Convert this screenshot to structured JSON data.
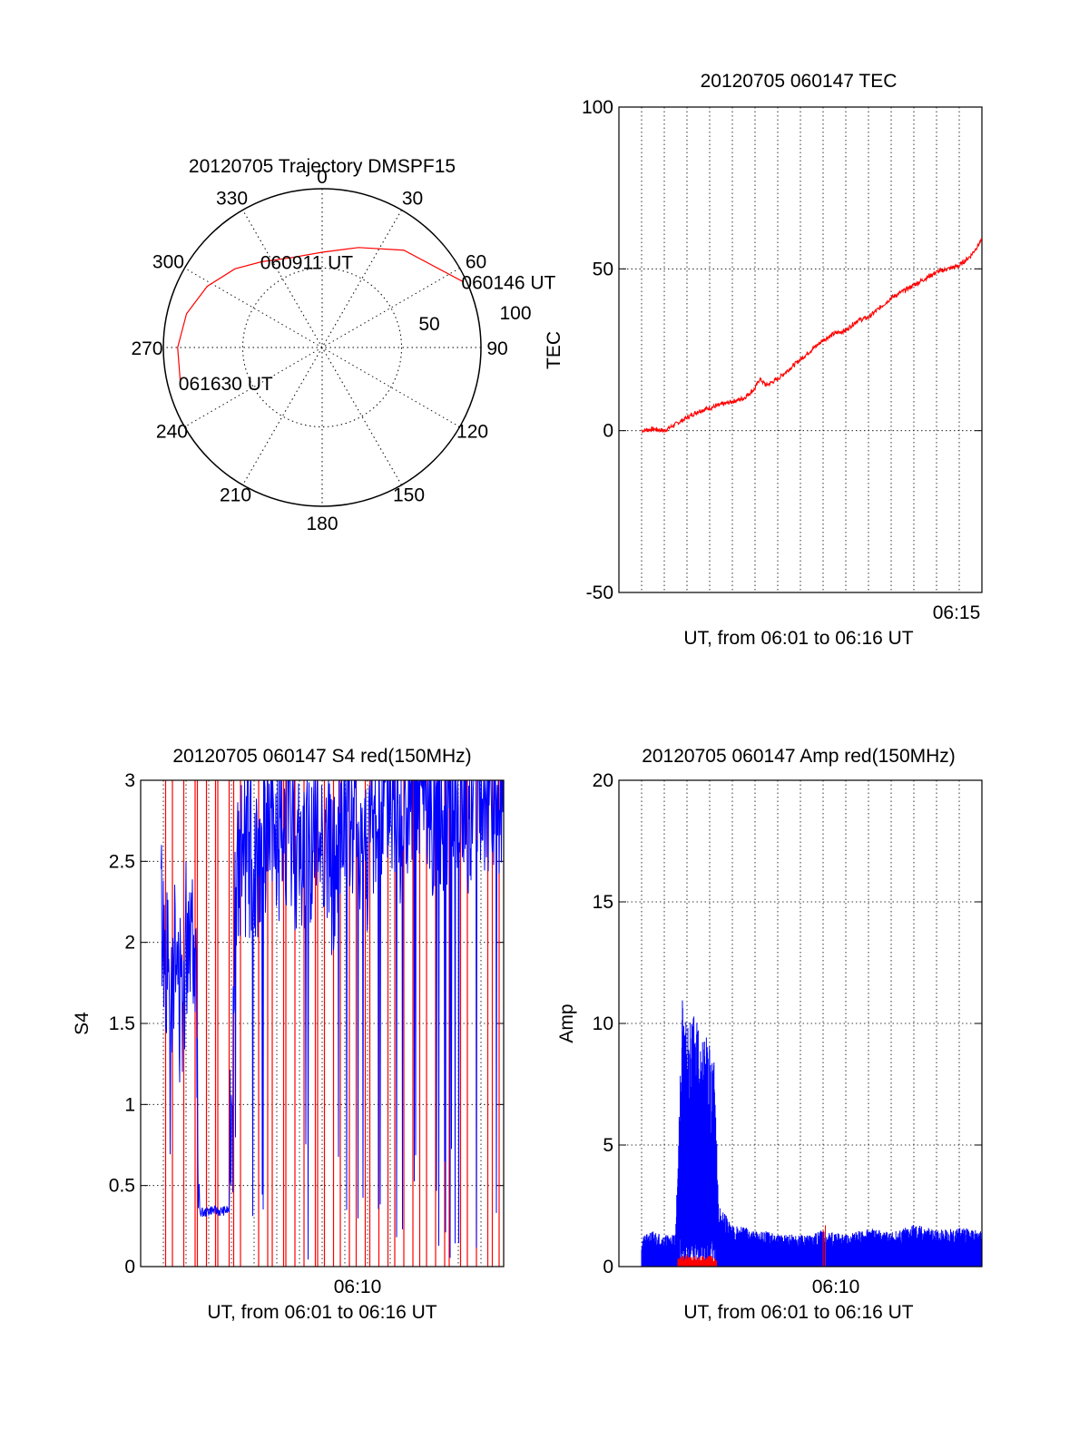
{
  "colors": {
    "red": "#ff0000",
    "blue": "#0000ff",
    "axis": "#000000",
    "grid": "#000000"
  },
  "chart_data": [
    {
      "id": "trajectory",
      "type": "polar",
      "title": "20120705 Trajectory DMSPF15",
      "angle_labels": [
        "0",
        "30",
        "60",
        "90",
        "120",
        "150",
        "180",
        "210",
        "240",
        "270",
        "300",
        "330"
      ],
      "radius_labels": [
        "50",
        "100"
      ],
      "rlim": [
        0,
        100
      ],
      "grid": true,
      "series": [
        {
          "color": "#ff0000",
          "points": [
            {
              "az": 65,
              "r": 98,
              "label": "060146 UT"
            },
            {
              "az": 40,
              "r": 80
            },
            {
              "az": 20,
              "r": 67
            },
            {
              "az": 0,
              "r": 60
            },
            {
              "az": -20,
              "r": 60
            },
            {
              "az": -35,
              "r": 66,
              "label": "060911 UT"
            },
            {
              "az": -48,
              "r": 74
            },
            {
              "az": -62,
              "r": 82
            },
            {
              "az": -76,
              "r": 88
            },
            {
              "az": -90,
              "r": 91
            },
            {
              "az": -104,
              "r": 92,
              "label": "061630 UT"
            }
          ]
        }
      ]
    },
    {
      "id": "tec",
      "type": "line",
      "title": "20120705 060147 TEC",
      "xlabel": "UT, from 06:01 to 06:16 UT",
      "ylabel": "TEC",
      "x_tick_labels": [
        "06:15"
      ],
      "y_ticks": [
        "100",
        "50",
        "0",
        "-50"
      ],
      "ylim": [
        -50,
        100
      ],
      "xlim_minutes": [
        0,
        16
      ],
      "grid": true,
      "series": [
        {
          "color": "#ff0000",
          "x": [
            1.0,
            1.5,
            2.0,
            2.5,
            3.0,
            3.5,
            4.0,
            4.5,
            5.0,
            5.5,
            6.0,
            6.2,
            6.5,
            7.0,
            7.5,
            8.0,
            8.5,
            9.0,
            9.5,
            10.0,
            10.5,
            11.0,
            11.5,
            12.0,
            12.5,
            13.0,
            13.5,
            14.0,
            14.5,
            15.0,
            15.5,
            16.0
          ],
          "y": [
            0,
            0.5,
            0,
            2,
            4,
            6,
            7,
            8,
            9,
            10,
            13,
            16,
            14,
            16,
            19,
            22,
            25,
            28,
            30,
            31,
            34,
            35,
            38,
            41,
            43,
            45,
            47,
            49,
            50,
            51,
            54,
            59
          ]
        }
      ]
    },
    {
      "id": "s4",
      "type": "line",
      "title": "20120705 060147 S4 red(150MHz)",
      "xlabel": "UT, from 06:01 to 06:16 UT",
      "ylabel": "S4",
      "x_tick_labels": [
        "06:10"
      ],
      "y_ticks": [
        "3",
        "2.5",
        "2",
        "1.5",
        "1",
        "0.5",
        "0"
      ],
      "ylim": [
        0,
        3
      ],
      "xlim_minutes": [
        0,
        16
      ],
      "grid": true,
      "series": [
        {
          "color": "#ff0000",
          "spikes_x": [
            1.1,
            1.4,
            1.9,
            2.4,
            2.5,
            2.9,
            3.3,
            3.4,
            3.9,
            4.1,
            4.4,
            5.2,
            5.6,
            5.8,
            6.3,
            6.4,
            6.8,
            7.2,
            7.7,
            7.8,
            8.1,
            8.5,
            8.8,
            9.2,
            9.5,
            9.9,
            10.1,
            10.5,
            10.9,
            11.2,
            11.6,
            12.0,
            12.3,
            12.6,
            13.0,
            13.4,
            13.6,
            14.1,
            14.4,
            14.8,
            15.3,
            15.5,
            15.8
          ],
          "spikes_y": [
            3,
            3,
            3,
            3,
            3,
            3,
            3,
            3,
            3,
            3,
            3,
            3,
            3,
            3,
            3,
            3,
            3,
            3,
            3,
            3,
            3,
            3,
            3,
            3,
            3,
            3,
            3,
            3,
            3,
            3,
            3,
            3,
            3,
            3,
            3,
            3,
            3,
            3,
            3,
            3,
            3,
            3,
            3
          ]
        },
        {
          "color": "#0000ff",
          "x": [
            0.9,
            1.2,
            1.5,
            1.8,
            2.1,
            2.4,
            2.6,
            2.8,
            3.1,
            3.5,
            3.9,
            4.1,
            4.3,
            4.7,
            5.1,
            5.5,
            6.0,
            6.5,
            7.0,
            7.5,
            8.0,
            8.5,
            9.0,
            9.5,
            10.0,
            10.5,
            11.0,
            11.5,
            12.0,
            12.5,
            13.0,
            13.5,
            14.0,
            14.5,
            15.0,
            15.5,
            16.0
          ],
          "y": [
            2.2,
            1.8,
            1.9,
            1.6,
            2.2,
            2.1,
            0.34,
            0.33,
            0.35,
            0.34,
            0.35,
            2.0,
            2.4,
            2.6,
            2.5,
            2.7,
            2.6,
            2.8,
            2.5,
            2.6,
            2.7,
            2.4,
            2.8,
            2.7,
            2.6,
            2.8,
            2.9,
            2.7,
            2.8,
            2.9,
            2.8,
            2.9,
            2.9,
            2.8,
            3.0,
            2.9,
            3.0
          ]
        }
      ]
    },
    {
      "id": "amp",
      "type": "line",
      "title": "20120705 060147 Amp red(150MHz)",
      "xlabel": "UT, from 06:01 to 06:16 UT",
      "ylabel": "Amp",
      "x_tick_labels": [
        "06:10"
      ],
      "y_ticks": [
        "20",
        "15",
        "10",
        "5",
        "0"
      ],
      "ylim": [
        0,
        20
      ],
      "xlim_minutes": [
        0,
        16
      ],
      "grid": true,
      "series": [
        {
          "color": "#0000ff",
          "x": [
            1.0,
            1.5,
            2.0,
            2.5,
            2.8,
            3.0,
            3.3,
            3.6,
            3.9,
            4.2,
            4.4,
            5.0,
            6.0,
            7.0,
            8.0,
            9.0,
            10.0,
            11.0,
            12.0,
            13.0,
            14.0,
            15.0,
            16.0
          ],
          "y": [
            1.2,
            1.5,
            1.3,
            1.4,
            11.3,
            10.2,
            10.4,
            10.0,
            9.5,
            8.5,
            2.5,
            1.8,
            1.5,
            1.4,
            1.3,
            1.5,
            1.3,
            1.6,
            1.4,
            1.8,
            1.5,
            1.6,
            1.5
          ]
        },
        {
          "color": "#ff0000",
          "x": [
            2.6,
            3.0,
            3.5,
            4.0,
            4.3,
            9.0,
            9.1
          ],
          "y": [
            0.4,
            0.5,
            0.4,
            0.5,
            0.3,
            1.5,
            1.7
          ]
        }
      ]
    }
  ]
}
